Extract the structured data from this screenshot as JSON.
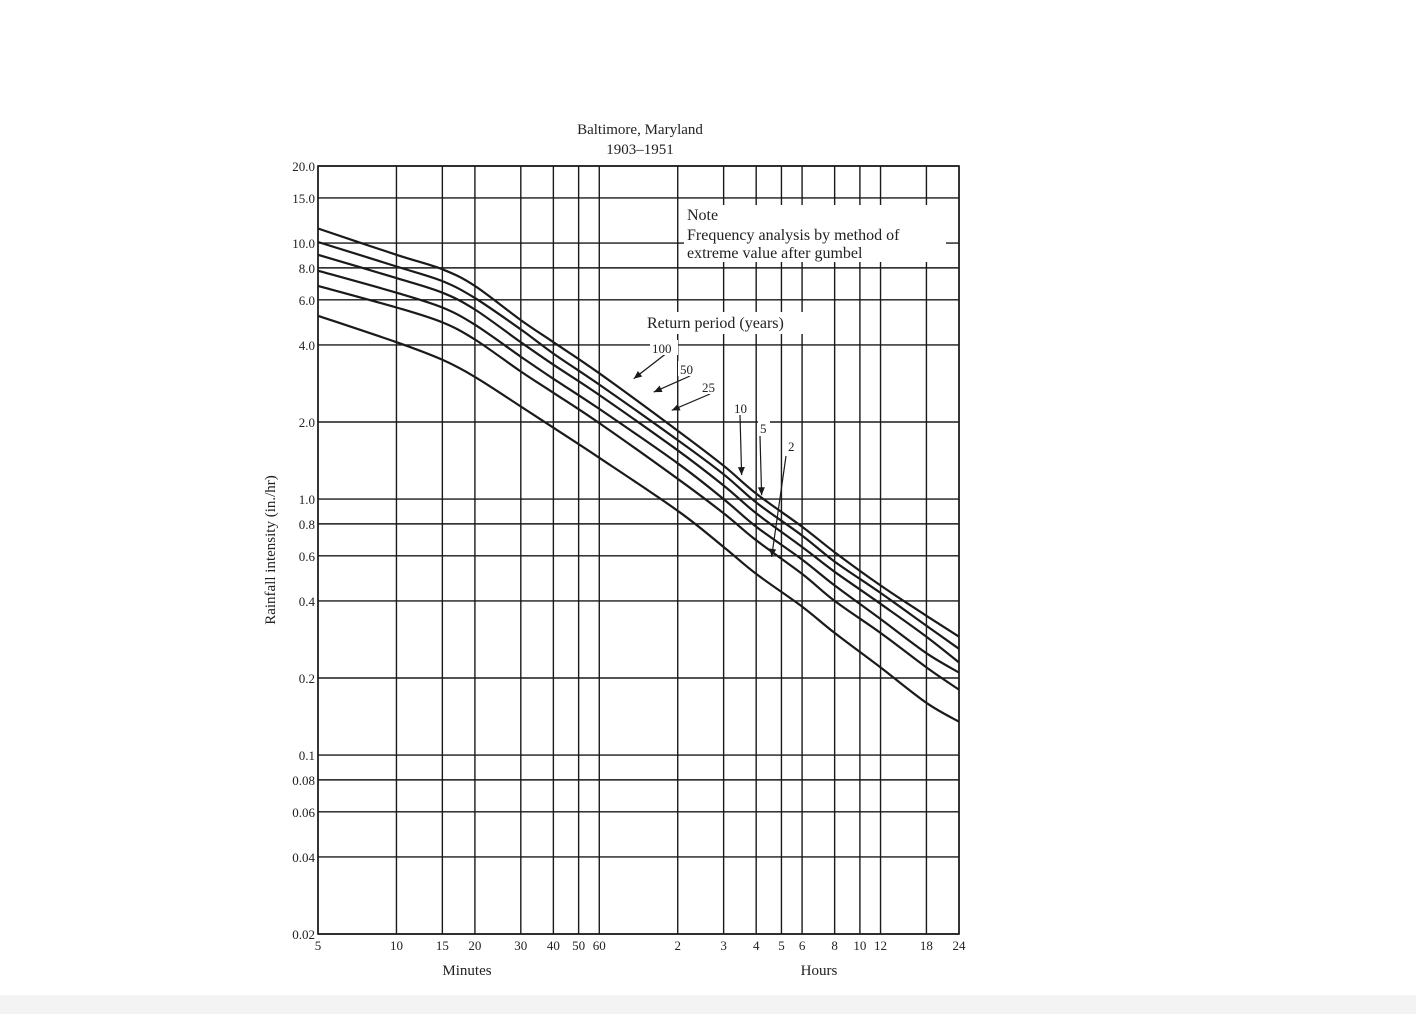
{
  "chart_data": {
    "type": "line",
    "title": "Baltimore, Maryland",
    "subtitle": "1903–1951",
    "ylabel": "Rainfall intensity (in./hr)",
    "y_scale": "log",
    "ylim": [
      0.02,
      20.0
    ],
    "y_ticks": [
      "20.0",
      "15.0",
      "10.0",
      "8.0",
      "6.0",
      "4.0",
      "2.0",
      "1.0",
      "0.8",
      "0.6",
      "0.4",
      "0.2",
      "0.1",
      "0.08",
      "0.06",
      "0.04",
      "0.02"
    ],
    "x_scale": "log",
    "xlim_minutes": [
      5,
      1440
    ],
    "x_tick_labels": [
      {
        "text": "5",
        "minutes": 5
      },
      {
        "text": "10",
        "minutes": 10
      },
      {
        "text": "15",
        "minutes": 15
      },
      {
        "text": "20",
        "minutes": 20
      },
      {
        "text": "30",
        "minutes": 30
      },
      {
        "text": "40",
        "minutes": 40
      },
      {
        "text": "50",
        "minutes": 50
      },
      {
        "text": "60",
        "minutes": 60
      },
      {
        "text": "2",
        "minutes": 120
      },
      {
        "text": "3",
        "minutes": 180
      },
      {
        "text": "4",
        "minutes": 240
      },
      {
        "text": "5",
        "minutes": 300
      },
      {
        "text": "6",
        "minutes": 360
      },
      {
        "text": "8",
        "minutes": 480
      },
      {
        "text": "10",
        "minutes": 600
      },
      {
        "text": "12",
        "minutes": 720
      },
      {
        "text": "18",
        "minutes": 1080
      },
      {
        "text": "24",
        "minutes": 1440
      }
    ],
    "xlabel_minutes": "Minutes",
    "xlabel_hours": "Hours",
    "legend_title": "Return period (years)",
    "note_heading": "Note",
    "note_line1": "Frequency analysis by method of",
    "note_line2": "extreme value after gumbel",
    "series": [
      {
        "name": "100",
        "x_minutes": [
          5,
          10,
          15,
          20,
          30,
          40,
          60,
          120,
          180,
          240,
          360,
          480,
          720,
          1080,
          1440
        ],
        "y": [
          11.4,
          9.0,
          7.9,
          6.8,
          5.0,
          4.1,
          3.1,
          1.85,
          1.35,
          1.05,
          0.78,
          0.62,
          0.46,
          0.35,
          0.29
        ]
      },
      {
        "name": "50",
        "x_minutes": [
          5,
          10,
          15,
          20,
          30,
          40,
          60,
          120,
          180,
          240,
          360,
          480,
          720,
          1080,
          1440
        ],
        "y": [
          10.1,
          8.1,
          7.1,
          6.1,
          4.6,
          3.7,
          2.8,
          1.7,
          1.25,
          0.97,
          0.72,
          0.57,
          0.43,
          0.32,
          0.26
        ]
      },
      {
        "name": "25",
        "x_minutes": [
          5,
          10,
          15,
          20,
          30,
          40,
          60,
          120,
          180,
          240,
          360,
          480,
          720,
          1080,
          1440
        ],
        "y": [
          9.0,
          7.3,
          6.4,
          5.5,
          4.1,
          3.35,
          2.55,
          1.55,
          1.13,
          0.88,
          0.65,
          0.52,
          0.39,
          0.29,
          0.23
        ]
      },
      {
        "name": "10",
        "x_minutes": [
          5,
          10,
          15,
          20,
          30,
          40,
          60,
          120,
          180,
          240,
          360,
          480,
          720,
          1080,
          1440
        ],
        "y": [
          7.8,
          6.4,
          5.6,
          4.8,
          3.6,
          2.95,
          2.25,
          1.38,
          1.0,
          0.78,
          0.58,
          0.46,
          0.34,
          0.25,
          0.21
        ]
      },
      {
        "name": "5",
        "x_minutes": [
          5,
          10,
          15,
          20,
          30,
          40,
          60,
          120,
          180,
          240,
          360,
          480,
          720,
          1080,
          1440
        ],
        "y": [
          6.8,
          5.6,
          4.9,
          4.2,
          3.15,
          2.6,
          1.98,
          1.2,
          0.88,
          0.69,
          0.51,
          0.4,
          0.3,
          0.22,
          0.18
        ]
      },
      {
        "name": "2",
        "x_minutes": [
          5,
          10,
          15,
          20,
          30,
          40,
          60,
          120,
          180,
          240,
          360,
          480,
          720,
          1080,
          1440
        ],
        "y": [
          5.2,
          4.1,
          3.5,
          3.0,
          2.3,
          1.9,
          1.45,
          0.9,
          0.65,
          0.51,
          0.38,
          0.3,
          0.22,
          0.16,
          0.135
        ]
      }
    ]
  }
}
